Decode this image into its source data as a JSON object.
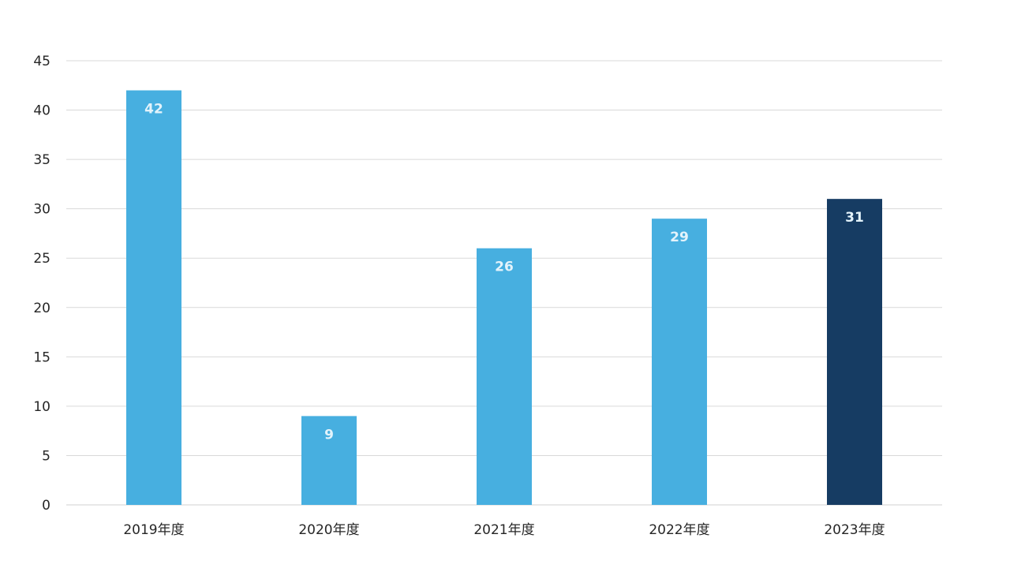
{
  "chart_data": {
    "type": "bar",
    "title": "",
    "xlabel": "",
    "ylabel": "",
    "categories": [
      "2019年度",
      "2020年度",
      "2021年度",
      "2022年度",
      "2023年度"
    ],
    "values": [
      42,
      9,
      26,
      29,
      31
    ],
    "ylim": [
      0,
      45
    ],
    "yticks": [
      0,
      5,
      10,
      15,
      20,
      25,
      30,
      35,
      40,
      45
    ],
    "grid": true,
    "legend": "none",
    "data_labels": [
      "42",
      "9",
      "26",
      "29",
      "31"
    ],
    "colors": {
      "bar": "#47afe0",
      "bar_highlight": "#163c63",
      "label_on_light": "#e3f3fb",
      "label_on_dark": "#e3f3fb",
      "grid": "#d9d9d9",
      "axis": "#d0d0d0"
    },
    "highlight_index": 4
  }
}
